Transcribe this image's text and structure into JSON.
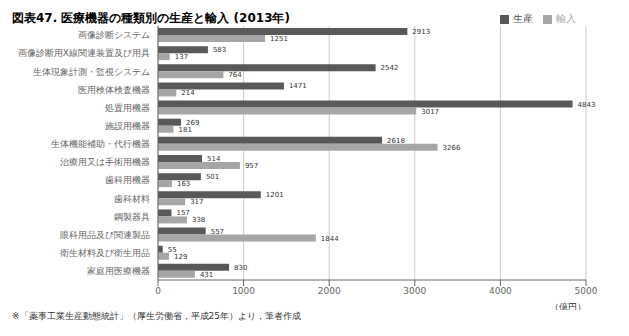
{
  "chart_data": {
    "type": "bar",
    "orientation": "horizontal",
    "title": "図表47.  医療機器の種類別の生産と輸入  (2013年)",
    "footnote": "※「薬事工業生産動態統計」（厚生労働省，平成25年）より，筆者作成",
    "xlabel": "（億円）",
    "categories": [
      "画像診断システム",
      "画像診断用X線関連装置及び用具",
      "生体現象計測・監視システム",
      "医用検体検査機器",
      "処置用機器",
      "施設用機器",
      "生体機能補助・代行機器",
      "治療用又は手術用機器",
      "歯科用機器",
      "歯科材料",
      "鋼製器具",
      "眼科用品及び関連製品",
      "衛生材料及び衛生用品",
      "家庭用医療機器"
    ],
    "series": [
      {
        "name": "生産",
        "color": "#595959",
        "values": [
          2913,
          583,
          2542,
          1471,
          4843,
          269,
          2618,
          514,
          501,
          1201,
          157,
          557,
          55,
          830
        ]
      },
      {
        "name": "輸入",
        "color": "#a6a6a6",
        "values": [
          1251,
          137,
          764,
          214,
          3017,
          181,
          3266,
          957,
          163,
          317,
          338,
          1844,
          129,
          431
        ]
      }
    ],
    "xlim": [
      0,
      5000
    ],
    "xticks": [
      0,
      1000,
      2000,
      3000,
      4000,
      5000
    ],
    "grid": true,
    "legend": "upper right",
    "data_labels": true
  }
}
